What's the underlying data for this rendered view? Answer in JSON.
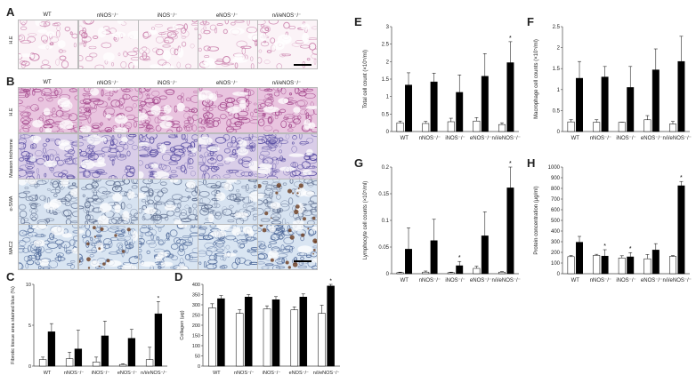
{
  "panel_labels": [
    "A",
    "B",
    "C",
    "D",
    "E",
    "F",
    "G",
    "H"
  ],
  "groups": [
    "WT",
    "nNOS⁻/⁻",
    "iNOS⁻/⁻",
    "eNOS⁻/⁻",
    "n/i/eNOS⁻/⁻"
  ],
  "micro_rows_A": [
    "H.E"
  ],
  "micro_rows_B": [
    "H.E",
    "Masson trichrome",
    "α-SMA",
    "MAC2"
  ],
  "colors": {
    "he": "#d69bc4",
    "masson": "#8a7fc4",
    "ihc": "#8faed3",
    "white_bar": "#ffffff",
    "black_bar": "#000000"
  },
  "chart_data": [
    {
      "panel": "C",
      "type": "bar",
      "categories": [
        "WT",
        "nNOS⁻/⁻",
        "iNOS⁻/⁻",
        "eNOS⁻/⁻",
        "n/i/eNOS⁻/⁻"
      ],
      "series": [
        {
          "values": [
            0.8,
            0.9,
            0.5,
            0.2,
            0.8
          ],
          "err": [
            0.3,
            0.8,
            0.6,
            0.1,
            1.5
          ]
        },
        {
          "values": [
            4.2,
            2.1,
            3.7,
            3.4,
            6.4
          ],
          "err": [
            1.0,
            2.3,
            1.8,
            1.1,
            1.5
          ]
        }
      ],
      "ylabel": "Fibrotic tissue area stained blue (%)",
      "ylim": [
        0,
        10
      ],
      "yticks": [
        0,
        5,
        10
      ],
      "ytick_labels": [
        "0",
        "5",
        "10"
      ],
      "stars": [
        4
      ]
    },
    {
      "panel": "D",
      "type": "bar",
      "categories": [
        "WT",
        "nNOS⁻/⁻",
        "iNOS⁻/⁻",
        "eNOS⁻/⁻",
        "n/i/eNOS⁻/⁻"
      ],
      "series": [
        {
          "values": [
            285,
            258,
            280,
            275,
            258
          ],
          "err": [
            20,
            18,
            15,
            15,
            40
          ]
        },
        {
          "values": [
            330,
            338,
            325,
            338,
            392
          ],
          "err": [
            15,
            12,
            15,
            15,
            12
          ]
        }
      ],
      "ylabel": "Collagen (μg)",
      "ylim": [
        0,
        400
      ],
      "yticks": [
        0,
        50,
        100,
        150,
        200,
        250,
        300,
        350,
        400
      ],
      "ytick_labels": [
        "0",
        "50",
        "100",
        "150",
        "200",
        "250",
        "300",
        "350",
        "400"
      ],
      "stars": [
        4
      ]
    },
    {
      "panel": "E",
      "type": "bar",
      "categories": [
        "WT",
        "nNOS⁻/⁻",
        "iNOS⁻/⁻",
        "eNOS⁻/⁻",
        "n/i/eNOS⁻/⁻"
      ],
      "series": [
        {
          "values": [
            0.25,
            0.23,
            0.28,
            0.3,
            0.2
          ],
          "err": [
            0.05,
            0.06,
            0.1,
            0.1,
            0.05
          ]
        },
        {
          "values": [
            1.33,
            1.42,
            1.12,
            1.58,
            1.97
          ],
          "err": [
            0.35,
            0.25,
            0.5,
            0.65,
            0.6
          ]
        }
      ],
      "ylabel": "Total cell count (×10⁵/ml)",
      "ylim": [
        0,
        3
      ],
      "yticks": [
        0,
        0.5,
        1,
        1.5,
        2,
        2.5,
        3
      ],
      "ytick_labels": [
        "0",
        "0.5",
        "1",
        "1.5",
        "2",
        "2.5",
        "3"
      ],
      "stars": [
        4
      ]
    },
    {
      "panel": "F",
      "type": "bar",
      "categories": [
        "WT",
        "nNOS⁻/⁻",
        "iNOS⁻/⁻",
        "eNOS⁻/⁻",
        "n/i/eNOS⁻/⁻"
      ],
      "series": [
        {
          "values": [
            0.23,
            0.22,
            0.22,
            0.28,
            0.18
          ],
          "err": [
            0.05,
            0.06,
            0.0,
            0.1,
            0.06
          ]
        },
        {
          "values": [
            1.27,
            1.3,
            1.05,
            1.47,
            1.67
          ],
          "err": [
            0.4,
            0.25,
            0.5,
            0.5,
            0.6
          ]
        }
      ],
      "ylabel": "Macrophage cell counts (×10⁵/ml)",
      "ylim": [
        0,
        2.5
      ],
      "yticks": [
        0,
        0.5,
        1,
        1.5,
        2,
        2.5
      ],
      "ytick_labels": [
        "0",
        "0.5",
        "1",
        "1.5",
        "2",
        "2.5"
      ],
      "stars": []
    },
    {
      "panel": "G",
      "type": "bar",
      "categories": [
        "WT",
        "nNOS⁻/⁻",
        "iNOS⁻/⁻",
        "eNOS⁻/⁻",
        "n/i/eNOS⁻/⁻"
      ],
      "series": [
        {
          "values": [
            0.002,
            0.003,
            0.002,
            0.01,
            0.003
          ],
          "err": [
            0.001,
            0.002,
            0.001,
            0.004,
            0.001
          ]
        },
        {
          "values": [
            0.046,
            0.062,
            0.015,
            0.071,
            0.161
          ],
          "err": [
            0.04,
            0.04,
            0.008,
            0.045,
            0.04
          ]
        }
      ],
      "ylabel": "Lymphocyte cell counts (×10⁵/ml)",
      "ylim": [
        0,
        0.2
      ],
      "yticks": [
        0,
        0.05,
        0.1,
        0.15,
        0.2
      ],
      "ytick_labels": [
        "0",
        "0.05",
        "0.1",
        "0.15",
        "0.2"
      ],
      "stars": [
        2,
        4
      ]
    },
    {
      "panel": "H",
      "type": "bar",
      "categories": [
        "WT",
        "nNOS⁻/⁻",
        "iNOS⁻/⁻",
        "eNOS⁻/⁻",
        "n/i/eNOS⁻/⁻"
      ],
      "series": [
        {
          "values": [
            160,
            172,
            148,
            140,
            162
          ],
          "err": [
            10,
            10,
            20,
            40,
            8
          ]
        },
        {
          "values": [
            295,
            165,
            158,
            222,
            825
          ],
          "err": [
            55,
            60,
            40,
            60,
            40
          ]
        }
      ],
      "ylabel": "Protein concentration (μg/ml)",
      "ylim": [
        0,
        1000
      ],
      "yticks": [
        0,
        100,
        200,
        300,
        400,
        500,
        600,
        700,
        800,
        900,
        1000
      ],
      "ytick_labels": [
        "0",
        "100",
        "200",
        "300",
        "400",
        "500",
        "600",
        "700",
        "800",
        "900",
        "1000"
      ],
      "stars": [
        1,
        2,
        4
      ]
    }
  ]
}
